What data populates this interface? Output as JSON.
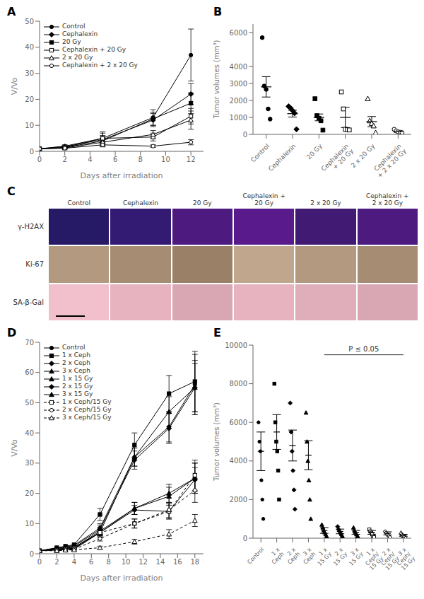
{
  "chart_data": [
    {
      "type": "line",
      "title": "A",
      "x": [
        0,
        2,
        5,
        9,
        12
      ],
      "xlabel": "Days after irradiation",
      "ylabel": "V/Vo",
      "xlim": [
        0,
        13
      ],
      "xticks": [
        0,
        2,
        4,
        6,
        8,
        10,
        12
      ],
      "ylim": [
        0,
        50
      ],
      "yticks": [
        0,
        10,
        20,
        30,
        40,
        50
      ],
      "color": "black",
      "grid": false,
      "legend": "upper left",
      "series": [
        {
          "name": "Control",
          "values": [
            1,
            2.0,
            5.0,
            13.0,
            37.0
          ],
          "errors": [
            0,
            0.5,
            2.0,
            3.0,
            10.0
          ],
          "marker": "circle",
          "line_style": "solid"
        },
        {
          "name": "Cephalexin",
          "values": [
            1,
            1.8,
            4.5,
            12.0,
            22.0
          ],
          "errors": [
            0,
            0.4,
            1.5,
            2.5,
            4.0
          ],
          "marker": "diamond",
          "line_style": "solid"
        },
        {
          "name": "20 Gy",
          "values": [
            1,
            1.5,
            4.0,
            12.5,
            18.5
          ],
          "errors": [
            0,
            0.3,
            2.0,
            2.5,
            4.0
          ],
          "marker": "square",
          "line_style": "solid"
        },
        {
          "name": "Cephalexin + 20 Gy",
          "values": [
            1,
            1.5,
            5.0,
            5.5,
            13.5
          ],
          "errors": [
            0,
            0.5,
            2.5,
            1.5,
            3.0
          ],
          "marker": "open-square",
          "line_style": "solid"
        },
        {
          "name": "2 x 20 Gy",
          "values": [
            1,
            1.3,
            3.5,
            6.5,
            12.0
          ],
          "errors": [
            0,
            0.3,
            1.5,
            1.5,
            3.5
          ],
          "marker": "open-triangle",
          "line_style": "solid"
        },
        {
          "name": "Cephalexin + 2 x 20 Gy",
          "values": [
            1,
            1.2,
            2.5,
            2.0,
            3.5
          ],
          "errors": [
            0,
            0.2,
            0.8,
            0.5,
            1.0
          ],
          "marker": "open-circle",
          "line_style": "solid"
        }
      ]
    },
    {
      "type": "dot_plot",
      "title": "B",
      "categories": [
        "Control",
        "Cephalexin",
        "20 Gy",
        "Cephalexin\n+ 20 Gy",
        "2 x 20 Gy",
        "Cephalexin\n+ 2 x 20 Gy"
      ],
      "points": [
        [
          5700,
          2850,
          2650,
          1500,
          900
        ],
        [
          1650,
          1550,
          1400,
          1250,
          300
        ],
        [
          2100,
          1100,
          950,
          800,
          250
        ],
        [
          2500,
          1500,
          300,
          280,
          260
        ],
        [
          2100,
          800,
          650,
          500,
          100
        ],
        [
          300,
          200,
          150,
          130,
          100
        ]
      ],
      "values": [
        2800,
        1220,
        1000,
        1000,
        750,
        180
      ],
      "errors": [
        600,
        200,
        200,
        600,
        300,
        50
      ],
      "markers": [
        "circle",
        "diamond",
        "square",
        "open-square",
        "open-triangle",
        "open-circle"
      ],
      "ylabel": "Tumor volumes (mm³)",
      "ylim": [
        0,
        6500
      ],
      "yticks": [
        0,
        1000,
        2000,
        3000,
        4000,
        6000
      ],
      "color": "black",
      "grid": false
    },
    {
      "type": "image_grid",
      "title": "C",
      "columns": [
        "Control",
        "Cephalexin",
        "20 Gy",
        "Cephalexin +\n20 Gy",
        "2 x 20 Gy",
        "Cephalexin +\n2 x 20 Gy"
      ],
      "rows": [
        "γ-H2AX",
        "Ki-67",
        "SA-β-Gal"
      ],
      "colors": [
        [
          "rgb(15%, 10%, 40%)",
          "rgb(20%, 10%, 45%)",
          "rgb(30%, 10%, 50%)",
          "rgb(35%, 10%, 55%)",
          "rgb(25%, 10%, 45%)",
          "rgb(30%, 10%, 50%)"
        ],
        [
          "rgb(70%, 60%, 50%)",
          "rgb(65%, 55%, 45%)",
          "rgb(60%, 50%, 40%)",
          "rgb(75%, 65%, 55%)",
          "rgb(70%, 60%, 50%)",
          "rgb(65%, 55%, 45%)"
        ],
        [
          "rgb(95%, 75%, 80%)",
          "rgb(90%, 70%, 75%)",
          "rgb(85%, 65%, 70%)",
          "rgb(90%, 70%, 75%)",
          "rgb(88%, 68%, 73%)",
          "rgb(85%, 65%, 70%)"
        ]
      ]
    },
    {
      "type": "line",
      "title": "D",
      "x": [
        0,
        2,
        3,
        4,
        7,
        11,
        15,
        18
      ],
      "xlabel": "Days after irradiation",
      "ylabel": "V/Vo",
      "xlim": [
        0,
        19
      ],
      "xticks": [
        0,
        2,
        4,
        6,
        8,
        10,
        12,
        14,
        16,
        18
      ],
      "ylim": [
        0,
        70
      ],
      "yticks": [
        0,
        10,
        20,
        30,
        40,
        50,
        60,
        70
      ],
      "color": "black",
      "grid": false,
      "legend": "upper left",
      "series": [
        {
          "name": "Control",
          "values": [
            1,
            1.8,
            2.2,
            2.8,
            8.5,
            32.0,
            42.0,
            56.0
          ],
          "errors": [
            0,
            0,
            0,
            0,
            1.5,
            3.0,
            5.0,
            10.0
          ],
          "marker": "circle",
          "line_style": "solid"
        },
        {
          "name": "1 x Ceph",
          "values": [
            1,
            2.0,
            2.5,
            3.0,
            13.0,
            36.0,
            53.0,
            57.0
          ],
          "errors": [
            0,
            0,
            0,
            0,
            2.0,
            4.0,
            6.0,
            10.0
          ],
          "marker": "square",
          "line_style": "solid"
        },
        {
          "name": "2 x Ceph",
          "values": [
            1,
            1.8,
            2.0,
            2.5,
            8.0,
            31.0,
            41.5,
            55.0
          ],
          "errors": [
            0,
            0,
            0,
            0,
            1.5,
            3.0,
            5.0,
            8.0
          ],
          "marker": "diamond",
          "line_style": "solid"
        },
        {
          "name": "3 x Ceph",
          "values": [
            1,
            1.5,
            1.8,
            2.2,
            7.0,
            32.0,
            47.0,
            55.0
          ],
          "errors": [
            0,
            0,
            0,
            0,
            1.5,
            3.0,
            5.0,
            9.0
          ],
          "marker": "triangle",
          "line_style": "solid"
        },
        {
          "name": "1 x 15 Gy",
          "values": [
            1,
            1.5,
            1.8,
            2.0,
            7.5,
            15.0,
            19.0,
            25.0
          ],
          "errors": [
            0,
            0,
            0,
            0,
            1.0,
            2.0,
            3.0,
            5.0
          ],
          "marker": "triangle",
          "line_style": "solid"
        },
        {
          "name": "2 x 15 Gy",
          "values": [
            1,
            1.3,
            1.6,
            1.8,
            7.0,
            14.5,
            14.0,
            24.5
          ],
          "errors": [
            0,
            0,
            0,
            0,
            1.0,
            1.5,
            2.5,
            4.0
          ],
          "marker": "diamond",
          "line_style": "solid"
        },
        {
          "name": "3 x 15 Gy",
          "values": [
            1,
            1.2,
            1.4,
            1.5,
            7.0,
            15.0,
            20.0,
            25.0
          ],
          "errors": [
            0,
            0,
            0,
            0,
            1.0,
            2.0,
            3.0,
            5.0
          ],
          "marker": "triangle",
          "line_style": "solid"
        },
        {
          "name": "1 x Ceph/15 Gy",
          "values": [
            1,
            1.2,
            1.5,
            1.8,
            7.0,
            10.0,
            14.0,
            26.0
          ],
          "errors": [
            0,
            0,
            0,
            0,
            0.8,
            1.5,
            2.5,
            5.0
          ],
          "marker": "open-square",
          "line_style": "dashed"
        },
        {
          "name": "2 x Ceph/15 Gy",
          "values": [
            1,
            1.1,
            1.3,
            1.5,
            5.0,
            10.0,
            14.5,
            21.0
          ],
          "errors": [
            0,
            0,
            0,
            0,
            0.8,
            1.5,
            2.5,
            4.0
          ],
          "marker": "open-circle",
          "line_style": "dashed"
        },
        {
          "name": "3 x Ceph/15 Gy",
          "values": [
            1,
            1.0,
            1.2,
            1.3,
            2.0,
            4.0,
            6.5,
            11.0
          ],
          "errors": [
            0,
            0,
            0,
            0,
            0.5,
            0.8,
            1.5,
            2.0
          ],
          "marker": "open-triangle",
          "line_style": "dashed"
        }
      ]
    },
    {
      "type": "dot_plot",
      "title": "E",
      "categories": [
        "Control",
        "1 x\nCeph",
        "2 x\nCeph",
        "3 x\nCeph",
        "1 x\n15 Gy",
        "2 x\n15 Gy",
        "3 x\n15 Gy",
        "1 x\nCeph/\n15 Gy",
        "2 x\nCeph/\n15 Gy",
        "3 x\nCeph/\n15 Gy"
      ],
      "points": [
        [
          6000,
          5000,
          4500,
          3000,
          2000,
          1000
        ],
        [
          8000,
          6000,
          5000,
          4500,
          3500,
          2000
        ],
        [
          7000,
          5500,
          4500,
          3500,
          2500,
          1500
        ],
        [
          6500,
          5000,
          4000,
          3000,
          2000,
          1000
        ],
        [
          700,
          550,
          400,
          300,
          200,
          100
        ],
        [
          600,
          450,
          350,
          250,
          150,
          50
        ],
        [
          550,
          400,
          300,
          200,
          100,
          50
        ],
        [
          450,
          350,
          280,
          200,
          100,
          50
        ],
        [
          350,
          270,
          200,
          150,
          100,
          50
        ],
        [
          280,
          200,
          150,
          100,
          50,
          30
        ]
      ],
      "values": [
        4500,
        5500,
        4800,
        4300,
        400,
        350,
        300,
        300,
        250,
        150
      ],
      "errors": [
        1000,
        900,
        800,
        750,
        150,
        120,
        100,
        100,
        80,
        50
      ],
      "markers": [
        "circle",
        "square",
        "diamond",
        "triangle",
        "triangle",
        "diamond",
        "triangle",
        "open-square",
        "open-circle",
        "open-triangle"
      ],
      "ylabel": "Tumor volumes (mm³)",
      "ylim": [
        0,
        10000
      ],
      "yticks": [
        0,
        2000,
        4000,
        6000,
        8000,
        10000
      ],
      "color": "black",
      "grid": false,
      "annotations": [
        {
          "text": "P ≤ 0.05",
          "from": "1 x\n15 Gy",
          "to": "3 x\nCeph/\n15 Gy",
          "y": 9500
        }
      ]
    }
  ]
}
